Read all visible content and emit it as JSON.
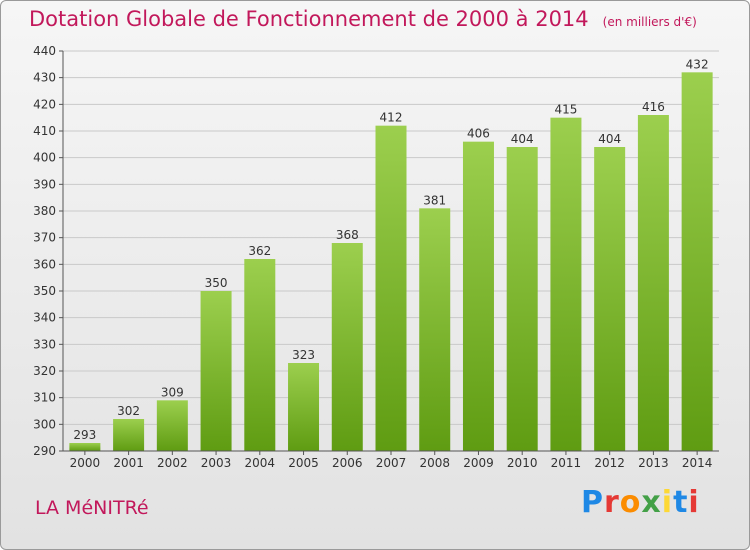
{
  "header": {
    "title": "Dotation Globale de Fonctionnement de 2000 à 2014",
    "unit": "(en milliers d'€)"
  },
  "footer": {
    "commune": "LA MéNITRé",
    "logo": "Proxiti"
  },
  "colors": {
    "title": "#c2185b",
    "bar_top": "#9ccf4e",
    "bar_bottom": "#5f9c12"
  },
  "chart_data": {
    "type": "bar",
    "title": "Dotation Globale de Fonctionnement de 2000 à 2014",
    "subtitle": "(en milliers d'€)",
    "categories": [
      "2000",
      "2001",
      "2002",
      "2003",
      "2004",
      "2005",
      "2006",
      "2007",
      "2008",
      "2009",
      "2010",
      "2011",
      "2012",
      "2013",
      "2014"
    ],
    "values": [
      293,
      302,
      309,
      350,
      362,
      323,
      368,
      412,
      381,
      406,
      404,
      415,
      404,
      416,
      432
    ],
    "ylim": [
      290,
      440
    ],
    "yticks": [
      290,
      300,
      310,
      320,
      330,
      340,
      350,
      360,
      370,
      380,
      390,
      400,
      410,
      420,
      430,
      440
    ],
    "grid": true
  }
}
